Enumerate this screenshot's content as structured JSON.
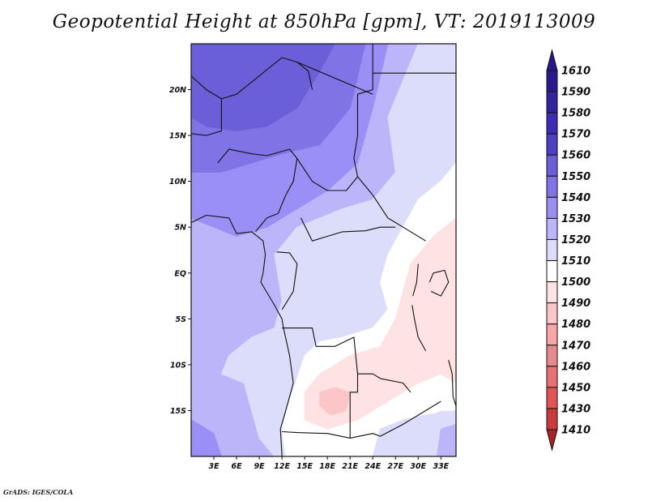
{
  "title": "Geopotential Height at 850hPa [gpm], VT: 2019113009",
  "footer": "GrADS: IGES/COLA",
  "map": {
    "lon_range": [
      0,
      35
    ],
    "lat_range": [
      -20,
      25
    ],
    "lat_ticks": [
      {
        "value": 20,
        "label": "20N"
      },
      {
        "value": 15,
        "label": "15N"
      },
      {
        "value": 10,
        "label": "10N"
      },
      {
        "value": 5,
        "label": "5N"
      },
      {
        "value": 0,
        "label": "EQ"
      },
      {
        "value": -5,
        "label": "5S"
      },
      {
        "value": -10,
        "label": "10S"
      },
      {
        "value": -15,
        "label": "15S"
      }
    ],
    "lon_ticks": [
      {
        "value": 3,
        "label": "3E"
      },
      {
        "value": 6,
        "label": "6E"
      },
      {
        "value": 9,
        "label": "9E"
      },
      {
        "value": 12,
        "label": "12E"
      },
      {
        "value": 15,
        "label": "15E"
      },
      {
        "value": 18,
        "label": "18E"
      },
      {
        "value": 21,
        "label": "21E"
      },
      {
        "value": 24,
        "label": "24E"
      },
      {
        "value": 27,
        "label": "27E"
      },
      {
        "value": 30,
        "label": "30E"
      },
      {
        "value": 33,
        "label": "33E"
      }
    ]
  },
  "colorbar": {
    "levels": [
      {
        "label": "1610",
        "color": "#2a1a8c"
      },
      {
        "label": "1590",
        "color": "#3322a0"
      },
      {
        "label": "1580",
        "color": "#3c2db4"
      },
      {
        "label": "1570",
        "color": "#4b3fc4"
      },
      {
        "label": "1560",
        "color": "#6a5fd6"
      },
      {
        "label": "1550",
        "color": "#7f73e6"
      },
      {
        "label": "1540",
        "color": "#9a8ff5"
      },
      {
        "label": "1530",
        "color": "#bcb5fa"
      },
      {
        "label": "1520",
        "color": "#dcdcfb"
      },
      {
        "label": "1510",
        "color": "#ffffff"
      },
      {
        "label": "1500",
        "color": "#ffe2e2"
      },
      {
        "label": "1490",
        "color": "#fcc6c8"
      },
      {
        "label": "1480",
        "color": "#f7a7aa"
      },
      {
        "label": "1470",
        "color": "#e58a8f"
      },
      {
        "label": "1460",
        "color": "#e87176"
      },
      {
        "label": "1450",
        "color": "#e45356"
      },
      {
        "label": "1430",
        "color": "#c93a3c"
      },
      {
        "label": "1410",
        "color": "#b22a2a"
      }
    ],
    "top_arrow_color": "#2a1490",
    "bottom_arrow_color": "#a82424"
  }
}
